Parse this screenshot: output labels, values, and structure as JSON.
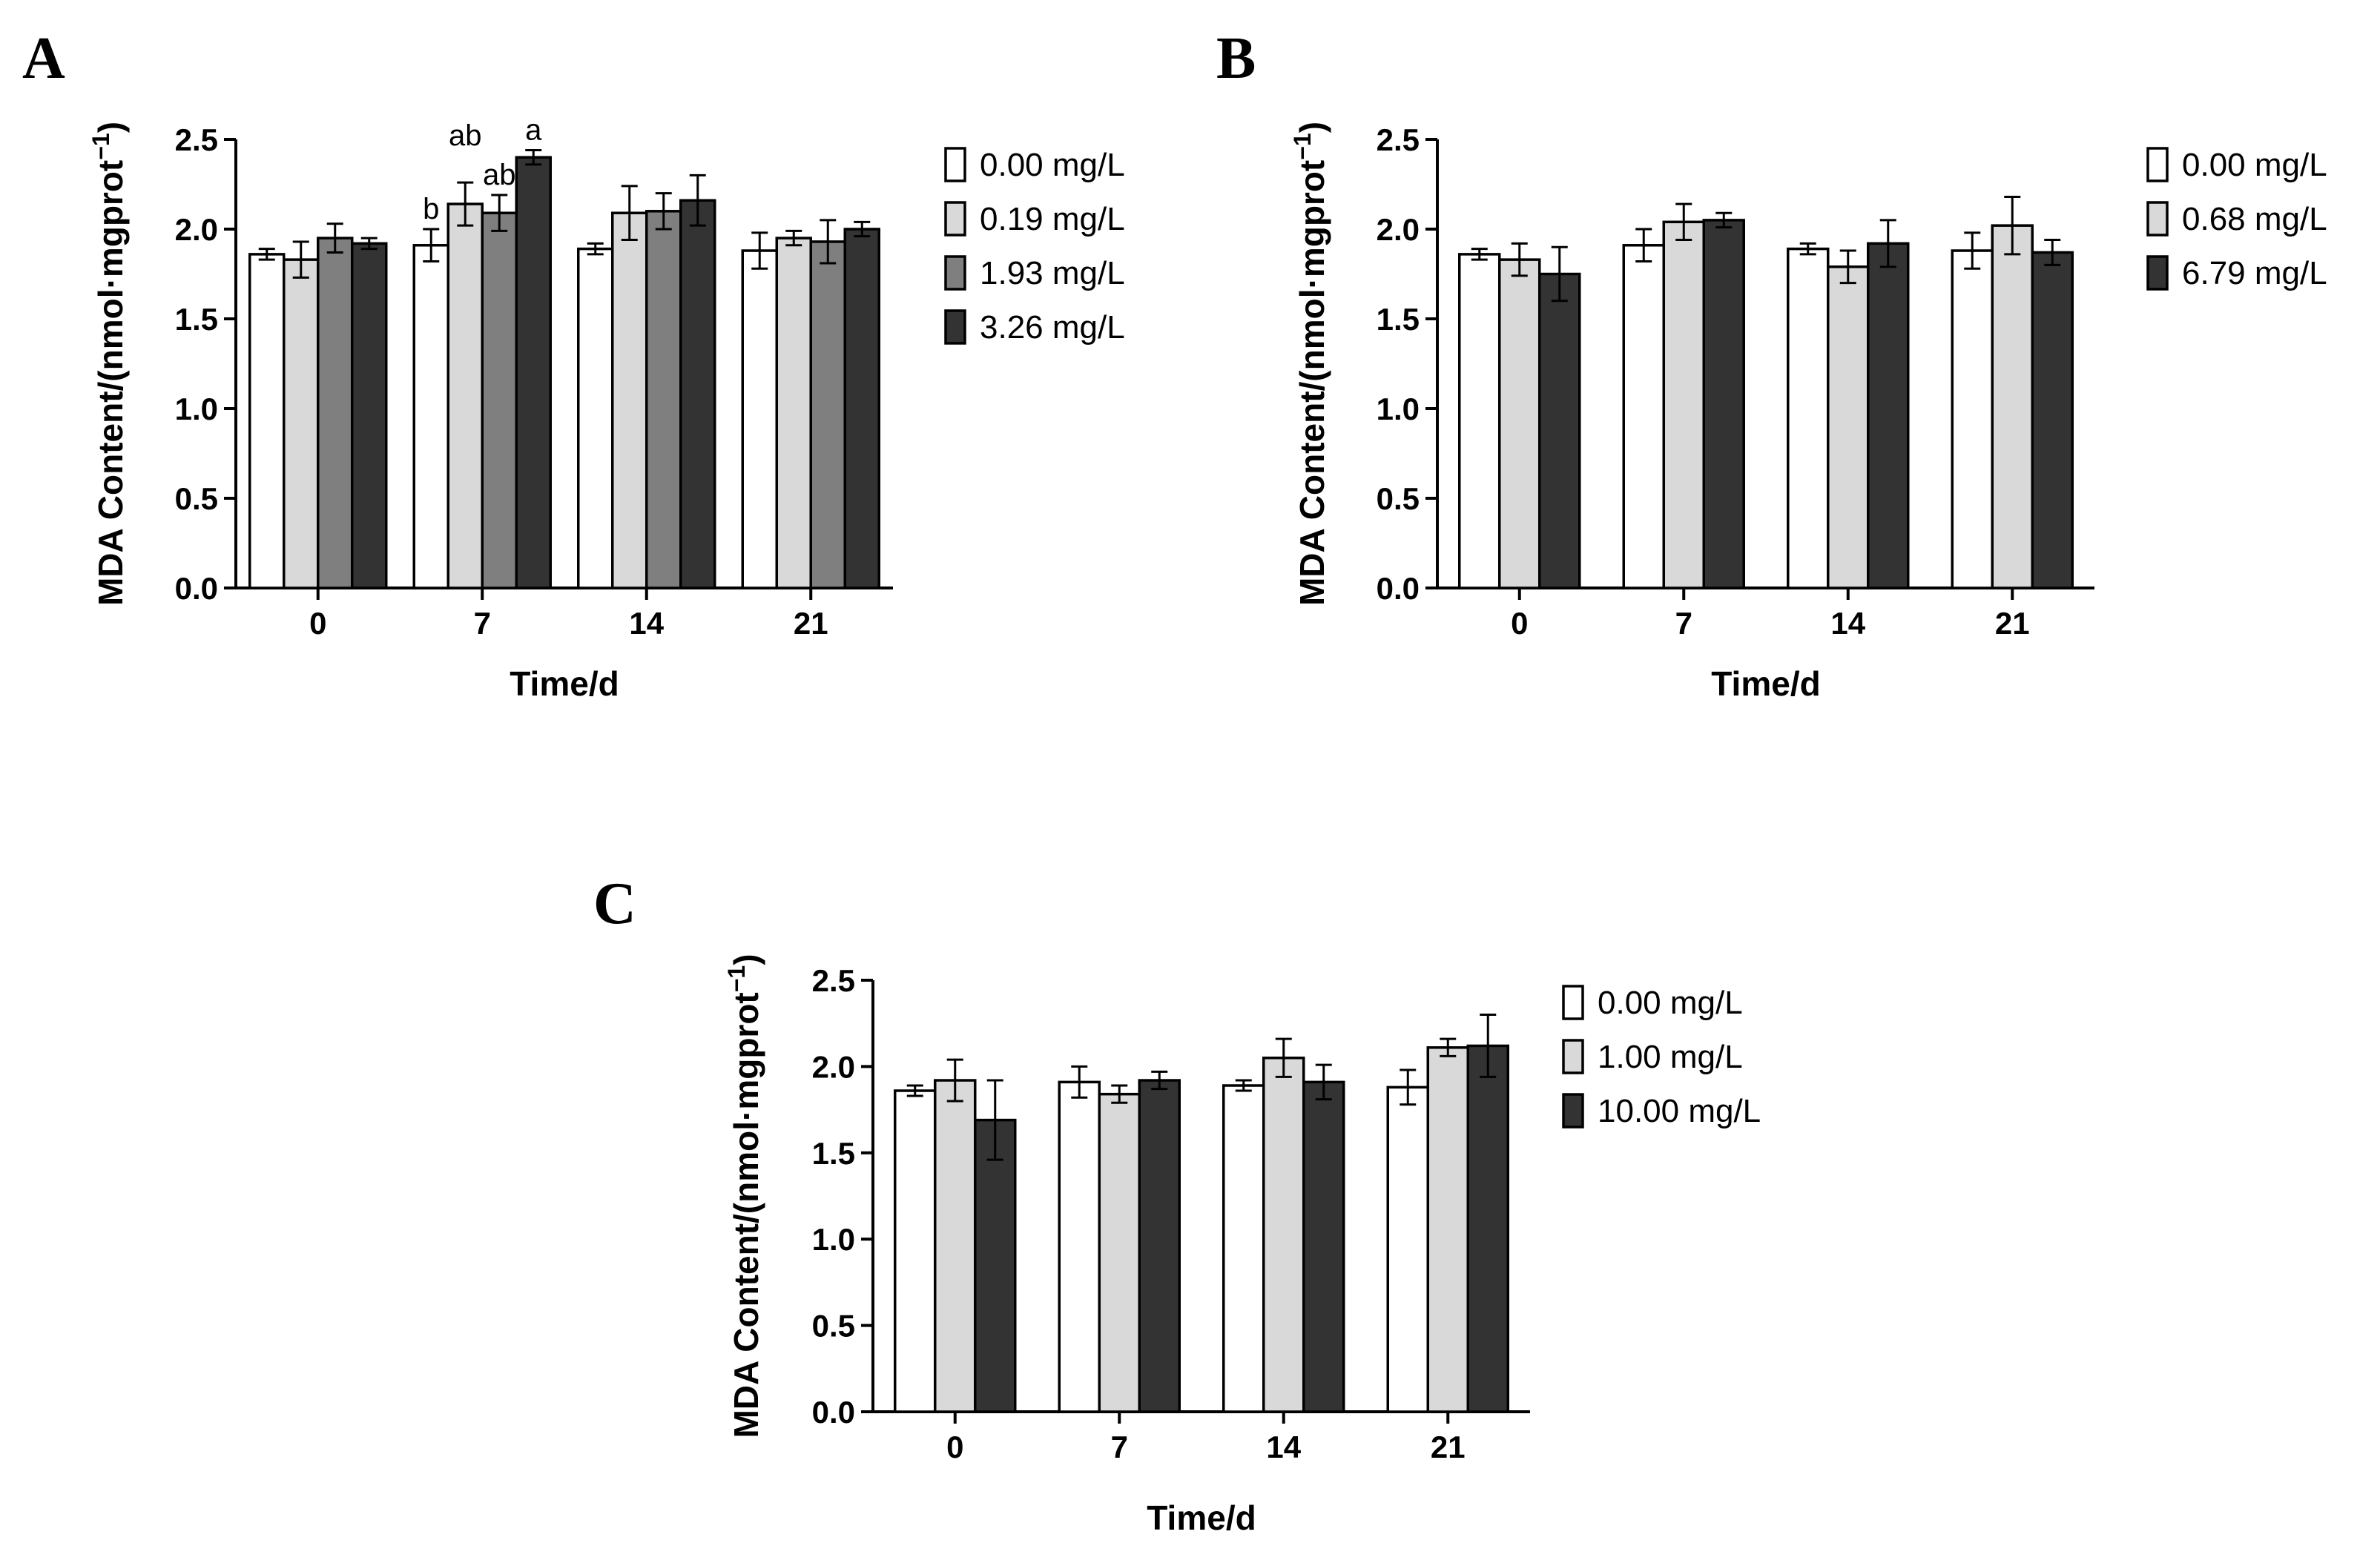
{
  "chart_data": [
    {
      "type": "bar",
      "panel": "A",
      "xlabel": "Time/d",
      "ylabel": "MDA Content/(nmol·mgprot",
      "ylabel_sup": "−1",
      "ylabel_close": ")",
      "ylim": [
        0,
        2.5
      ],
      "yticks": [
        "0.0",
        "0.5",
        "1.0",
        "1.5",
        "2.0",
        "2.5"
      ],
      "categories": [
        "0",
        "7",
        "14",
        "21"
      ],
      "series": [
        {
          "name": "0.00 mg/L",
          "color": "#ffffff",
          "values": [
            1.86,
            1.91,
            1.89,
            1.88
          ],
          "errors": [
            0.03,
            0.09,
            0.03,
            0.1
          ]
        },
        {
          "name": "0.19 mg/L",
          "color": "#d9d9d9",
          "values": [
            1.83,
            2.14,
            2.09,
            1.95
          ],
          "errors": [
            0.1,
            0.12,
            0.15,
            0.04
          ]
        },
        {
          "name": "1.93 mg/L",
          "color": "#7f7f7f",
          "values": [
            1.95,
            2.09,
            2.1,
            1.93
          ],
          "errors": [
            0.08,
            0.1,
            0.1,
            0.12
          ]
        },
        {
          "name": "3.26 mg/L",
          "color": "#333333",
          "values": [
            1.92,
            2.4,
            2.16,
            2.0
          ],
          "errors": [
            0.03,
            0.04,
            0.14,
            0.04
          ]
        }
      ],
      "annotations": [
        {
          "text": "b",
          "category": "7",
          "series": 0
        },
        {
          "text": "ab",
          "category": "7",
          "series": 1
        },
        {
          "text": "ab",
          "category": "7",
          "series": 2
        },
        {
          "text": "a",
          "category": "7",
          "series": 3
        }
      ]
    },
    {
      "type": "bar",
      "panel": "B",
      "xlabel": "Time/d",
      "ylabel": "MDA Content/(nmol·mgprot",
      "ylabel_sup": "−1",
      "ylabel_close": ")",
      "ylim": [
        0,
        2.5
      ],
      "yticks": [
        "0.0",
        "0.5",
        "1.0",
        "1.5",
        "2.0",
        "2.5"
      ],
      "categories": [
        "0",
        "7",
        "14",
        "21"
      ],
      "series": [
        {
          "name": "0.00 mg/L",
          "color": "#ffffff",
          "values": [
            1.86,
            1.91,
            1.89,
            1.88
          ],
          "errors": [
            0.03,
            0.09,
            0.03,
            0.1
          ]
        },
        {
          "name": "0.68 mg/L",
          "color": "#d9d9d9",
          "values": [
            1.83,
            2.04,
            1.79,
            2.02
          ],
          "errors": [
            0.09,
            0.1,
            0.09,
            0.16
          ]
        },
        {
          "name": "6.79 mg/L",
          "color": "#333333",
          "values": [
            1.75,
            2.05,
            1.92,
            1.87
          ],
          "errors": [
            0.15,
            0.04,
            0.13,
            0.07
          ]
        }
      ],
      "annotations": []
    },
    {
      "type": "bar",
      "panel": "C",
      "xlabel": "Time/d",
      "ylabel": "MDA Content/(nmol·mgprot",
      "ylabel_sup": "−1",
      "ylabel_close": ")",
      "ylim": [
        0,
        2.5
      ],
      "yticks": [
        "0.0",
        "0.5",
        "1.0",
        "1.5",
        "2.0",
        "2.5"
      ],
      "categories": [
        "0",
        "7",
        "14",
        "21"
      ],
      "series": [
        {
          "name": "0.00 mg/L",
          "color": "#ffffff",
          "values": [
            1.86,
            1.91,
            1.89,
            1.88
          ],
          "errors": [
            0.03,
            0.09,
            0.03,
            0.1
          ]
        },
        {
          "name": "1.00 mg/L",
          "color": "#d9d9d9",
          "values": [
            1.92,
            1.84,
            2.05,
            2.11
          ],
          "errors": [
            0.12,
            0.05,
            0.11,
            0.05
          ]
        },
        {
          "name": "10.00 mg/L",
          "color": "#333333",
          "values": [
            1.69,
            1.92,
            1.91,
            2.12
          ],
          "errors": [
            0.23,
            0.05,
            0.1,
            0.18
          ]
        }
      ],
      "annotations": []
    }
  ]
}
